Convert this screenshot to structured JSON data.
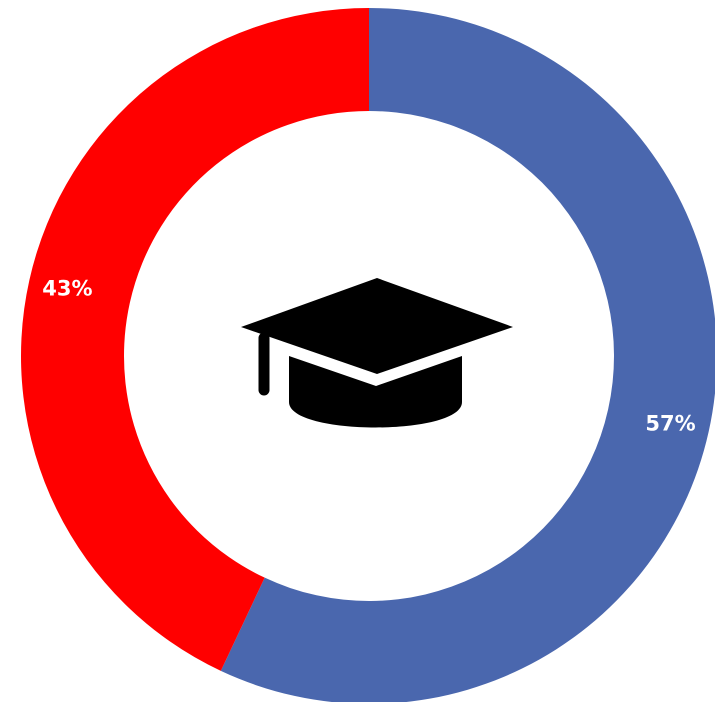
{
  "chart_data": {
    "type": "pie",
    "variant": "donut",
    "title": "",
    "slices": [
      {
        "label": "57%",
        "value": 57,
        "color": "#4A67AE"
      },
      {
        "label": "43%",
        "value": 43,
        "color": "#FF0000"
      }
    ],
    "start_angle_deg": 0,
    "direction": "clockwise",
    "center_icon": "graduation-cap-icon",
    "center_icon_color": "#000000",
    "legend": "none"
  }
}
